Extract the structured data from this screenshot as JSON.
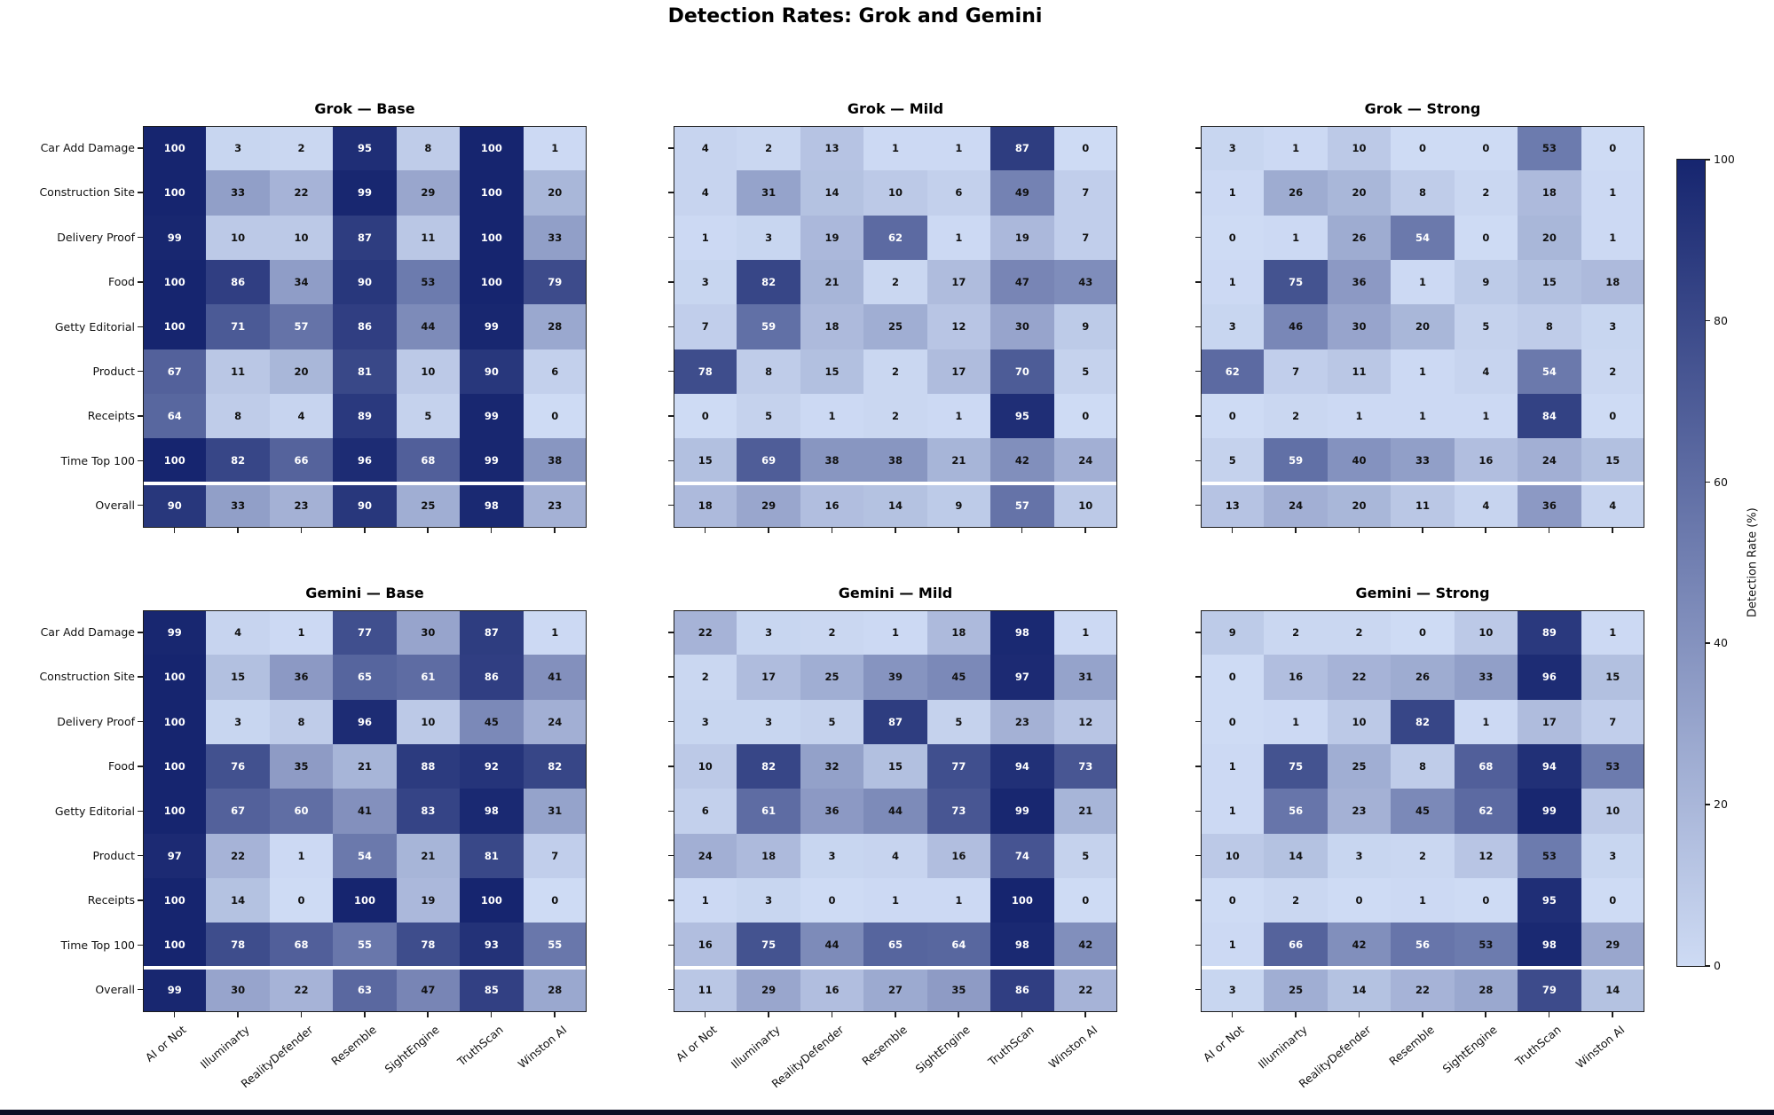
{
  "figure": {
    "title": "Detection Rates: Grok and Gemini"
  },
  "colorbar": {
    "label": "Detection Rate (%)",
    "ticks": [
      0,
      20,
      40,
      60,
      80,
      100
    ],
    "min_color": "#cedbf4",
    "max_color": "#16256f"
  },
  "chart_data": {
    "type": "heatmap",
    "vmin": 0,
    "vmax": 100,
    "value_unit": "percent",
    "rows": [
      "Car Add Damage",
      "Construction Site",
      "Delivery Proof",
      "Food",
      "Getty Editorial",
      "Product",
      "Receipts",
      "Time Top 100",
      "Overall"
    ],
    "columns": [
      "AI or Not",
      "Illuminarty",
      "RealityDefender",
      "Resemble",
      "SightEngine",
      "TruthScan",
      "Winston AI"
    ],
    "panels": [
      {
        "title": "Grok — Base",
        "values": [
          [
            100,
            3,
            2,
            95,
            8,
            100,
            1
          ],
          [
            100,
            33,
            22,
            99,
            29,
            100,
            20
          ],
          [
            99,
            10,
            10,
            87,
            11,
            100,
            33
          ],
          [
            100,
            86,
            34,
            90,
            53,
            100,
            79
          ],
          [
            100,
            71,
            57,
            86,
            44,
            99,
            28
          ],
          [
            67,
            11,
            20,
            81,
            10,
            90,
            6
          ],
          [
            64,
            8,
            4,
            89,
            5,
            99,
            0
          ],
          [
            100,
            82,
            66,
            96,
            68,
            99,
            38
          ],
          [
            90,
            33,
            23,
            90,
            25,
            98,
            23
          ]
        ]
      },
      {
        "title": "Grok — Mild",
        "values": [
          [
            4,
            2,
            13,
            1,
            1,
            87,
            0
          ],
          [
            4,
            31,
            14,
            10,
            6,
            49,
            7
          ],
          [
            1,
            3,
            19,
            62,
            1,
            19,
            7
          ],
          [
            3,
            82,
            21,
            2,
            17,
            47,
            43
          ],
          [
            7,
            59,
            18,
            25,
            12,
            30,
            9
          ],
          [
            78,
            8,
            15,
            2,
            17,
            70,
            5
          ],
          [
            0,
            5,
            1,
            2,
            1,
            95,
            0
          ],
          [
            15,
            69,
            38,
            38,
            21,
            42,
            24
          ],
          [
            18,
            29,
            16,
            14,
            9,
            57,
            10
          ]
        ]
      },
      {
        "title": "Grok — Strong",
        "values": [
          [
            3,
            1,
            10,
            0,
            0,
            53,
            0
          ],
          [
            1,
            26,
            20,
            8,
            2,
            18,
            1
          ],
          [
            0,
            1,
            26,
            54,
            0,
            20,
            1
          ],
          [
            1,
            75,
            36,
            1,
            9,
            15,
            18
          ],
          [
            3,
            46,
            30,
            20,
            5,
            8,
            3
          ],
          [
            62,
            7,
            11,
            1,
            4,
            54,
            2
          ],
          [
            0,
            2,
            1,
            1,
            1,
            84,
            0
          ],
          [
            5,
            59,
            40,
            33,
            16,
            24,
            15
          ],
          [
            13,
            24,
            20,
            11,
            4,
            36,
            4
          ]
        ]
      },
      {
        "title": "Gemini — Base",
        "values": [
          [
            99,
            4,
            1,
            77,
            30,
            87,
            1
          ],
          [
            100,
            15,
            36,
            65,
            61,
            86,
            41
          ],
          [
            100,
            3,
            8,
            96,
            10,
            45,
            24
          ],
          [
            100,
            76,
            35,
            21,
            88,
            92,
            82
          ],
          [
            100,
            67,
            60,
            41,
            83,
            98,
            31
          ],
          [
            97,
            22,
            1,
            54,
            21,
            81,
            7
          ],
          [
            100,
            14,
            0,
            100,
            19,
            100,
            0
          ],
          [
            100,
            78,
            68,
            55,
            78,
            93,
            55
          ],
          [
            99,
            30,
            22,
            63,
            47,
            85,
            28
          ]
        ]
      },
      {
        "title": "Gemini — Mild",
        "values": [
          [
            22,
            3,
            2,
            1,
            18,
            98,
            1
          ],
          [
            2,
            17,
            25,
            39,
            45,
            97,
            31
          ],
          [
            3,
            3,
            5,
            87,
            5,
            23,
            12
          ],
          [
            10,
            82,
            32,
            15,
            77,
            94,
            73
          ],
          [
            6,
            61,
            36,
            44,
            73,
            99,
            21
          ],
          [
            24,
            18,
            3,
            4,
            16,
            74,
            5
          ],
          [
            1,
            3,
            0,
            1,
            1,
            100,
            0
          ],
          [
            16,
            75,
            44,
            65,
            64,
            98,
            42
          ],
          [
            11,
            29,
            16,
            27,
            35,
            86,
            22
          ]
        ]
      },
      {
        "title": "Gemini — Strong",
        "values": [
          [
            9,
            2,
            2,
            0,
            10,
            89,
            1
          ],
          [
            0,
            16,
            22,
            26,
            33,
            96,
            15
          ],
          [
            0,
            1,
            10,
            82,
            1,
            17,
            7
          ],
          [
            1,
            75,
            25,
            8,
            68,
            94,
            53
          ],
          [
            1,
            56,
            23,
            45,
            62,
            99,
            10
          ],
          [
            10,
            14,
            3,
            2,
            12,
            53,
            3
          ],
          [
            0,
            2,
            0,
            1,
            0,
            95,
            0
          ],
          [
            1,
            66,
            42,
            56,
            53,
            98,
            29
          ],
          [
            3,
            25,
            14,
            22,
            28,
            79,
            14
          ]
        ]
      }
    ]
  }
}
